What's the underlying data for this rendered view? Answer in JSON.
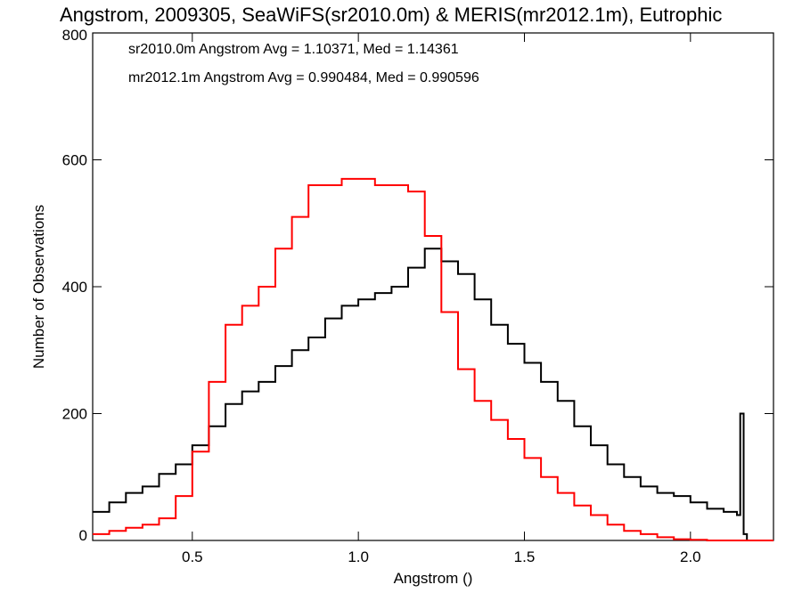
{
  "chart_data": {
    "type": "line",
    "title": "Angstrom, 2009305, SeaWiFS(sr2010.0m) & MERIS(mr2012.1m), Eutrophic",
    "xlabel": "Angstrom ()",
    "ylabel": "Number of Observations",
    "xlim": [
      0.2,
      2.25
    ],
    "ylim": [
      0,
      800
    ],
    "x_ticks": [
      0.5,
      1.0,
      1.5,
      2.0
    ],
    "x_tick_labels": [
      "0.5",
      "1.0",
      "1.5",
      "2.0"
    ],
    "y_ticks": [
      0,
      200,
      400,
      600,
      800
    ],
    "y_tick_labels": [
      "0",
      "200",
      "400",
      "600",
      "800"
    ],
    "grid": false,
    "legend_position": "top-left",
    "annotations": [
      {
        "text": "sr2010.0m Angstrom Avg = 1.10371, Med = 1.14361",
        "color": "#000000"
      },
      {
        "text": "mr2012.1m Angstrom Avg = 0.990484, Med = 0.990596",
        "color": "#ff0000"
      }
    ],
    "series": [
      {
        "color": "#000000",
        "step": true,
        "x": [
          0.2,
          0.25,
          0.3,
          0.35,
          0.4,
          0.45,
          0.5,
          0.55,
          0.6,
          0.65,
          0.7,
          0.75,
          0.8,
          0.85,
          0.9,
          0.95,
          1.0,
          1.05,
          1.1,
          1.15,
          1.2,
          1.25,
          1.3,
          1.35,
          1.4,
          1.45,
          1.5,
          1.55,
          1.6,
          1.65,
          1.7,
          1.75,
          1.8,
          1.85,
          1.9,
          1.95,
          2.0,
          2.05,
          2.1,
          2.14,
          2.15,
          2.16,
          2.17,
          2.25
        ],
        "values": [
          45,
          60,
          75,
          85,
          105,
          120,
          150,
          180,
          215,
          235,
          250,
          275,
          300,
          320,
          350,
          370,
          380,
          390,
          400,
          430,
          460,
          440,
          420,
          380,
          340,
          310,
          280,
          250,
          220,
          180,
          150,
          120,
          100,
          85,
          75,
          70,
          60,
          50,
          45,
          40,
          200,
          10,
          0,
          0
        ]
      },
      {
        "color": "#ff0000",
        "step": true,
        "x": [
          0.2,
          0.25,
          0.3,
          0.35,
          0.4,
          0.45,
          0.5,
          0.55,
          0.6,
          0.65,
          0.7,
          0.75,
          0.8,
          0.85,
          0.9,
          0.95,
          1.0,
          1.05,
          1.1,
          1.15,
          1.2,
          1.25,
          1.3,
          1.35,
          1.4,
          1.45,
          1.5,
          1.55,
          1.6,
          1.65,
          1.7,
          1.75,
          1.8,
          1.85,
          1.9,
          1.95,
          2.0,
          2.05,
          2.1,
          2.15,
          2.2,
          2.25
        ],
        "values": [
          10,
          15,
          20,
          25,
          35,
          70,
          140,
          250,
          340,
          370,
          400,
          460,
          510,
          560,
          560,
          570,
          570,
          560,
          560,
          550,
          480,
          360,
          270,
          220,
          190,
          160,
          130,
          100,
          75,
          55,
          40,
          25,
          15,
          10,
          5,
          2,
          1,
          0,
          0,
          0,
          0,
          0
        ]
      }
    ]
  }
}
